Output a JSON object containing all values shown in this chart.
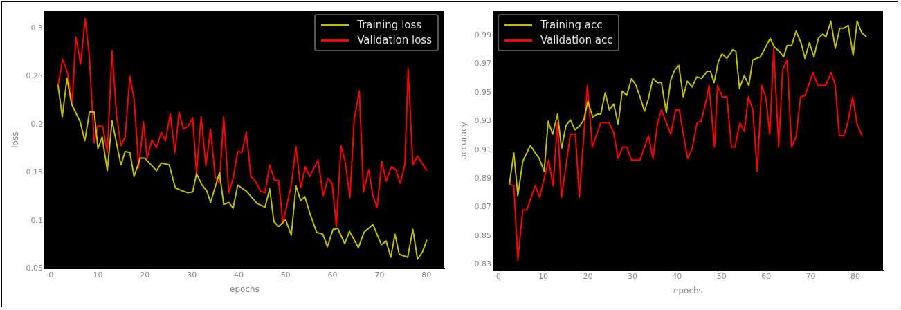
{
  "chart_data": [
    {
      "type": "line",
      "xlabel": "epochs",
      "ylabel": "loss",
      "xlim": [
        -1.3,
        83.8
      ],
      "xticks": [
        0,
        10,
        20,
        30,
        40,
        50,
        60,
        70,
        80
      ],
      "ylim": [
        0.05,
        0.318
      ],
      "yticks": [
        0.05,
        0.1,
        0.15,
        0.2,
        0.25,
        0.3
      ],
      "grid": false,
      "legend": "top right",
      "series": [
        {
          "name": "Training loss",
          "color": "#bfbf00",
          "x": [
            1.5,
            2.4,
            3.4,
            4.4,
            6.2,
            7.2,
            8.2,
            9.2,
            10,
            10.9,
            12,
            13,
            14.9,
            15.8,
            16.8,
            17.7,
            19,
            20,
            22.5,
            23.5,
            25.2,
            26.5,
            28,
            29.2,
            30.2,
            31,
            32.2,
            33.2,
            34,
            35.9,
            36.8,
            37.9,
            38.8,
            39.8,
            40.9,
            41.6,
            43.9,
            45.6,
            46.6,
            47.5,
            48.5,
            50,
            51.2,
            52.2,
            53.2,
            54.1,
            55.2,
            56.6,
            57.9,
            58.9,
            60.1,
            61.1,
            62.6,
            63.6,
            65.5,
            66.7,
            68.6,
            70.4,
            71.4,
            72.4,
            73.3,
            74.2,
            76,
            77.1,
            78.1,
            79.1,
            80.1
          ],
          "values": [
            0.241,
            0.208,
            0.248,
            0.221,
            0.203,
            0.183,
            0.213,
            0.213,
            0.175,
            0.187,
            0.152,
            0.204,
            0.158,
            0.172,
            0.171,
            0.146,
            0.165,
            0.165,
            0.152,
            0.16,
            0.158,
            0.134,
            0.131,
            0.129,
            0.13,
            0.149,
            0.137,
            0.131,
            0.119,
            0.15,
            0.117,
            0.119,
            0.113,
            0.137,
            0.133,
            0.131,
            0.118,
            0.114,
            0.133,
            0.099,
            0.094,
            0.101,
            0.085,
            0.136,
            0.121,
            0.125,
            0.107,
            0.088,
            0.086,
            0.073,
            0.091,
            0.092,
            0.076,
            0.089,
            0.072,
            0.088,
            0.096,
            0.075,
            0.079,
            0.062,
            0.086,
            0.065,
            0.062,
            0.091,
            0.06,
            0.067,
            0.08
          ]
        },
        {
          "name": "Validation loss",
          "color": "#ff0000",
          "x": [
            1.5,
            2.5,
            3.5,
            4.5,
            5.3,
            6.3,
            7.3,
            8.2,
            9.2,
            10,
            11,
            12,
            13,
            14,
            14.9,
            15.8,
            16.8,
            17.7,
            18.7,
            19.7,
            20.5,
            21.5,
            22.5,
            23.5,
            24.4,
            25.4,
            26.4,
            27.3,
            28.2,
            29.2,
            30.2,
            31,
            32,
            33,
            34,
            35,
            35.9,
            36.8,
            37.9,
            38.8,
            39.8,
            40.7,
            41.6,
            42.6,
            43.6,
            44.6,
            45.6,
            46.6,
            47.6,
            48.5,
            49.4,
            51.2,
            52.2,
            53.2,
            54.2,
            55.1,
            56.9,
            58,
            59,
            59.9,
            60.8,
            61.8,
            62.7,
            63.7,
            64.6,
            65.7,
            66.6,
            67.7,
            68.6,
            69.5,
            70.5,
            71.4,
            72.5,
            73.5,
            74.4,
            75.4,
            76.1,
            77.1,
            78.1,
            80.1
          ],
          "values": [
            0.241,
            0.268,
            0.254,
            0.222,
            0.291,
            0.263,
            0.31,
            0.269,
            0.181,
            0.199,
            0.198,
            0.171,
            0.277,
            0.208,
            0.178,
            0.187,
            0.25,
            0.227,
            0.155,
            0.203,
            0.165,
            0.184,
            0.176,
            0.192,
            0.183,
            0.211,
            0.171,
            0.213,
            0.195,
            0.198,
            0.207,
            0.149,
            0.208,
            0.157,
            0.195,
            0.145,
            0.139,
            0.208,
            0.129,
            0.144,
            0.172,
            0.171,
            0.192,
            0.146,
            0.141,
            0.131,
            0.129,
            0.158,
            0.142,
            0.142,
            0.097,
            0.137,
            0.177,
            0.134,
            0.156,
            0.146,
            0.163,
            0.126,
            0.144,
            0.139,
            0.094,
            0.178,
            0.161,
            0.124,
            0.205,
            0.235,
            0.13,
            0.153,
            0.126,
            0.114,
            0.162,
            0.141,
            0.156,
            0.153,
            0.139,
            0.158,
            0.258,
            0.158,
            0.167,
            0.152
          ]
        }
      ]
    },
    {
      "type": "line",
      "xlabel": "epochs",
      "ylabel": "accuracy",
      "xlim": [
        -1.2,
        86.2
      ],
      "xticks": [
        0,
        10,
        20,
        30,
        40,
        50,
        60,
        70,
        80
      ],
      "ylim": [
        0.826,
        1.007
      ],
      "yticks": [
        0.83,
        0.85,
        0.87,
        0.89,
        0.91,
        0.93,
        0.95,
        0.97,
        0.99
      ],
      "grid": false,
      "legend": "top left",
      "series": [
        {
          "name": "Training acc",
          "color": "#bfbf00",
          "x": [
            2.4,
            3.4,
            4.3,
            5.4,
            7.1,
            9.1,
            10.2,
            11.1,
            12.1,
            13.2,
            14.1,
            15.1,
            16.1,
            17.1,
            18.2,
            19.1,
            20,
            21.1,
            22.1,
            22.9,
            23.9,
            24.8,
            25.8,
            26.8,
            27.7,
            28.7,
            29.8,
            30.8,
            31.7,
            32.7,
            33.6,
            34.6,
            35.6,
            36.5,
            37.6,
            38.6,
            39.5,
            40.4,
            41.4,
            42.3,
            43.4,
            44.4,
            45.5,
            46.8,
            47.5,
            48.3,
            49.3,
            50.1,
            51.2,
            52.5,
            53.2,
            54,
            55.1,
            56.1,
            57,
            58.7,
            59.9,
            60.9,
            61.8,
            62.9,
            63.9,
            64.7,
            65.7,
            66.7,
            67.8,
            68.7,
            69.7,
            70.7,
            71.7,
            72.7,
            73.4,
            74.5,
            75.5,
            76.5,
            77.4,
            78.4,
            79.5,
            80.4,
            81.4,
            82.5
          ],
          "values": [
            0.886,
            0.908,
            0.878,
            0.902,
            0.913,
            0.904,
            0.895,
            0.93,
            0.921,
            0.935,
            0.911,
            0.927,
            0.931,
            0.924,
            0.927,
            0.931,
            0.944,
            0.933,
            0.935,
            0.935,
            0.95,
            0.938,
            0.942,
            0.928,
            0.951,
            0.948,
            0.96,
            0.955,
            0.947,
            0.937,
            0.946,
            0.96,
            0.957,
            0.957,
            0.936,
            0.959,
            0.966,
            0.969,
            0.947,
            0.958,
            0.954,
            0.961,
            0.96,
            0.965,
            0.965,
            0.957,
            0.972,
            0.977,
            0.974,
            0.98,
            0.979,
            0.953,
            0.962,
            0.955,
            0.973,
            0.975,
            0.982,
            0.988,
            0.982,
            0.979,
            0.975,
            0.983,
            0.983,
            0.993,
            0.985,
            0.974,
            0.985,
            0.975,
            0.988,
            0.991,
            0.989,
            1.0,
            0.981,
            0.995,
            0.995,
            0.997,
            0.976,
            1.0,
            0.992,
            0.989
          ]
        },
        {
          "name": "Validation acc",
          "color": "#ff0000",
          "x": [
            2.4,
            3.4,
            4.3,
            5.4,
            6.3,
            8.2,
            9.2,
            11.2,
            12.2,
            13.2,
            14.1,
            16.1,
            17.2,
            18.1,
            19.9,
            21,
            22.9,
            24.8,
            25.8,
            26.8,
            27.8,
            28.7,
            29.8,
            31.7,
            33.6,
            34.6,
            35.6,
            36.5,
            38.6,
            39.7,
            40.5,
            41.3,
            42.4,
            43.4,
            44.5,
            45.4,
            46.3,
            47.2,
            48.4,
            49.1,
            50.2,
            51.2,
            52.2,
            53,
            54.1,
            55.1,
            56,
            57,
            58,
            59,
            59.9,
            60.8,
            61.7,
            62.8,
            63.7,
            64.7,
            65.7,
            66.7,
            67.7,
            68.7,
            70.5,
            71.6,
            73.3,
            74.6,
            75.5,
            76.4,
            77.4,
            78.3,
            79.4,
            80.4,
            81.5
          ],
          "values": [
            0.886,
            0.885,
            0.833,
            0.868,
            0.868,
            0.885,
            0.877,
            0.903,
            0.885,
            0.929,
            0.877,
            0.921,
            0.921,
            0.877,
            0.955,
            0.912,
            0.929,
            0.929,
            0.922,
            0.904,
            0.912,
            0.912,
            0.903,
            0.903,
            0.92,
            0.904,
            0.928,
            0.938,
            0.921,
            0.938,
            0.938,
            0.923,
            0.904,
            0.911,
            0.929,
            0.93,
            0.941,
            0.955,
            0.912,
            0.955,
            0.947,
            0.947,
            0.912,
            0.912,
            0.929,
            0.923,
            0.947,
            0.938,
            0.895,
            0.955,
            0.947,
            0.921,
            0.981,
            0.912,
            0.966,
            0.973,
            0.912,
            0.919,
            0.947,
            0.948,
            0.964,
            0.955,
            0.955,
            0.964,
            0.955,
            0.92,
            0.92,
            0.929,
            0.947,
            0.928,
            0.92
          ]
        }
      ]
    }
  ]
}
